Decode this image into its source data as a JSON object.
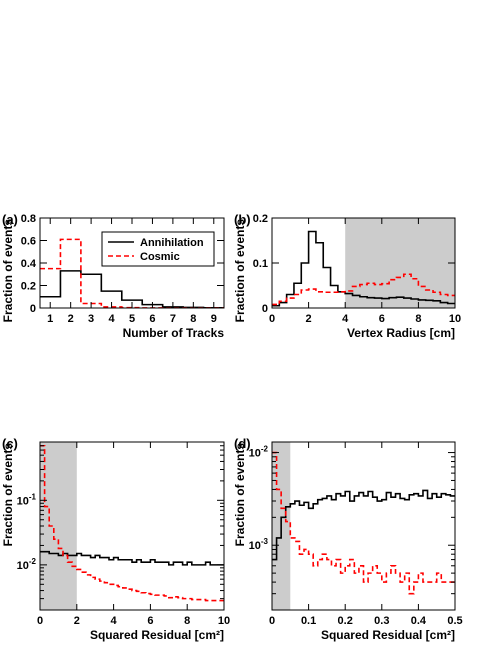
{
  "colors": {
    "annihilation": "#000000",
    "cosmic": "#ff0000",
    "shade": "#cccccc"
  },
  "chart_data": [
    {
      "panel_label": "(a)",
      "type": "line",
      "step": true,
      "xlabel": "Number of Tracks",
      "ylabel": "Fraction of events",
      "xlim": [
        0.5,
        9.5
      ],
      "ylim": [
        0,
        0.8
      ],
      "xticks": [
        1,
        2,
        3,
        4,
        5,
        6,
        7,
        8,
        9
      ],
      "yticks": [
        0,
        0.2,
        0.4,
        0.6,
        0.8
      ],
      "legend": {
        "position": "top-right",
        "entries": [
          "Annihilation",
          "Cosmic"
        ]
      },
      "shaded": [],
      "x": [
        1,
        2,
        3,
        4,
        5,
        6,
        7,
        8,
        9
      ],
      "series": [
        {
          "name": "Annihilation",
          "values": [
            0.1,
            0.33,
            0.3,
            0.15,
            0.07,
            0.03,
            0.01,
            0.005,
            0.002
          ]
        },
        {
          "name": "Cosmic",
          "values": [
            0.35,
            0.61,
            0.04,
            0.01,
            0.003,
            0.001,
            0.0,
            0.0,
            0.0
          ]
        }
      ]
    },
    {
      "panel_label": "(b)",
      "type": "line",
      "step": true,
      "xlabel": "Vertex Radius [cm]",
      "ylabel": "Fraction of events",
      "xlim": [
        0,
        10
      ],
      "ylim": [
        0,
        0.2
      ],
      "xticks": [
        0,
        2,
        4,
        6,
        8,
        10
      ],
      "yticks": [
        0,
        0.1,
        0.2
      ],
      "shaded": [
        [
          4,
          10
        ]
      ],
      "binning": {
        "start": 0,
        "width": 0.4
      },
      "series": [
        {
          "name": "Annihilation",
          "values": [
            0.005,
            0.012,
            0.03,
            0.055,
            0.1,
            0.17,
            0.145,
            0.09,
            0.05,
            0.036,
            0.032,
            0.028,
            0.025,
            0.023,
            0.022,
            0.021,
            0.023,
            0.024,
            0.022,
            0.02,
            0.018,
            0.017,
            0.016,
            0.012,
            0.01
          ]
        },
        {
          "name": "Cosmic",
          "values": [
            0.008,
            0.015,
            0.022,
            0.03,
            0.04,
            0.042,
            0.036,
            0.035,
            0.035,
            0.036,
            0.038,
            0.048,
            0.052,
            0.055,
            0.052,
            0.054,
            0.063,
            0.068,
            0.075,
            0.065,
            0.048,
            0.04,
            0.035,
            0.03,
            0.028
          ]
        }
      ]
    },
    {
      "panel_label": "(c)",
      "type": "line",
      "step": true,
      "log_y": true,
      "xlabel": "Squared Residual [cm²]",
      "ylabel": "Fraction of events",
      "xlim": [
        0,
        10
      ],
      "ylim": [
        0.002,
        0.8
      ],
      "xticks": [
        0,
        2,
        4,
        6,
        8,
        10
      ],
      "yticks": [
        0.01,
        0.1
      ],
      "ytick_labels": [
        {
          "base": "10",
          "exp": "-2"
        },
        {
          "base": "10",
          "exp": "-1"
        }
      ],
      "shaded": [
        [
          0,
          2
        ]
      ],
      "binning": {
        "start": 0,
        "width": 0.25
      },
      "series": [
        {
          "name": "Annihilation",
          "values": [
            0.016,
            0.016,
            0.015,
            0.015,
            0.014,
            0.015,
            0.014,
            0.014,
            0.015,
            0.014,
            0.014,
            0.013,
            0.014,
            0.013,
            0.013,
            0.012,
            0.013,
            0.012,
            0.012,
            0.012,
            0.011,
            0.012,
            0.011,
            0.011,
            0.012,
            0.011,
            0.011,
            0.011,
            0.01,
            0.011,
            0.011,
            0.01,
            0.011,
            0.01,
            0.01,
            0.01,
            0.011,
            0.01,
            0.01,
            0.01
          ]
        },
        {
          "name": "Cosmic",
          "values": [
            0.7,
            0.08,
            0.04,
            0.025,
            0.018,
            0.014,
            0.011,
            0.0095,
            0.0085,
            0.0077,
            0.007,
            0.0064,
            0.006,
            0.0056,
            0.0053,
            0.005,
            0.0048,
            0.0046,
            0.0044,
            0.0042,
            0.004,
            0.0039,
            0.0037,
            0.0036,
            0.0035,
            0.0034,
            0.0034,
            0.0033,
            0.0031,
            0.0032,
            0.0031,
            0.003,
            0.003,
            0.0029,
            0.0029,
            0.0029,
            0.0028,
            0.0028,
            0.0028,
            0.0028
          ]
        }
      ]
    },
    {
      "panel_label": "(d)",
      "type": "line",
      "step": true,
      "log_y": true,
      "xlabel": "Squared Residual [cm²]",
      "ylabel": "Fraction of events",
      "xlim": [
        0,
        0.5
      ],
      "ylim": [
        0.0002,
        0.013
      ],
      "xticks": [
        0,
        0.1,
        0.2,
        0.3,
        0.4,
        0.5
      ],
      "yticks": [
        0.001,
        0.01
      ],
      "ytick_labels": [
        {
          "base": "10",
          "exp": "-3"
        },
        {
          "base": "10",
          "exp": "-2"
        }
      ],
      "shaded": [
        [
          0,
          0.05
        ]
      ],
      "binning": {
        "start": 0,
        "width": 0.0125
      },
      "series": [
        {
          "name": "Annihilation",
          "values": [
            0.0007,
            0.0012,
            0.002,
            0.0026,
            0.0028,
            0.003,
            0.0027,
            0.0029,
            0.0025,
            0.0028,
            0.0031,
            0.0032,
            0.0034,
            0.0031,
            0.0036,
            0.0034,
            0.0038,
            0.003,
            0.0034,
            0.0037,
            0.0034,
            0.0038,
            0.0033,
            0.003,
            0.0031,
            0.0037,
            0.0033,
            0.0036,
            0.0032,
            0.0031,
            0.0035,
            0.0036,
            0.0034,
            0.0039,
            0.0032,
            0.0036,
            0.0033,
            0.0036,
            0.0035,
            0.0034
          ]
        },
        {
          "name": "Cosmic",
          "values": [
            0.01,
            0.004,
            0.0025,
            0.0018,
            0.0012,
            0.0011,
            0.0008,
            0.0009,
            0.0008,
            0.0006,
            0.0007,
            0.0008,
            0.0007,
            0.0006,
            0.0007,
            0.0005,
            0.0006,
            0.0007,
            0.0005,
            0.0006,
            0.0004,
            0.0005,
            0.0006,
            0.0005,
            0.0004,
            0.0005,
            0.0006,
            0.0005,
            0.0004,
            0.0005,
            0.0003,
            0.0004,
            0.0005,
            0.0004,
            0.0004,
            0.0004,
            0.0005,
            0.0004,
            0.0004,
            0.0004
          ]
        }
      ]
    }
  ]
}
